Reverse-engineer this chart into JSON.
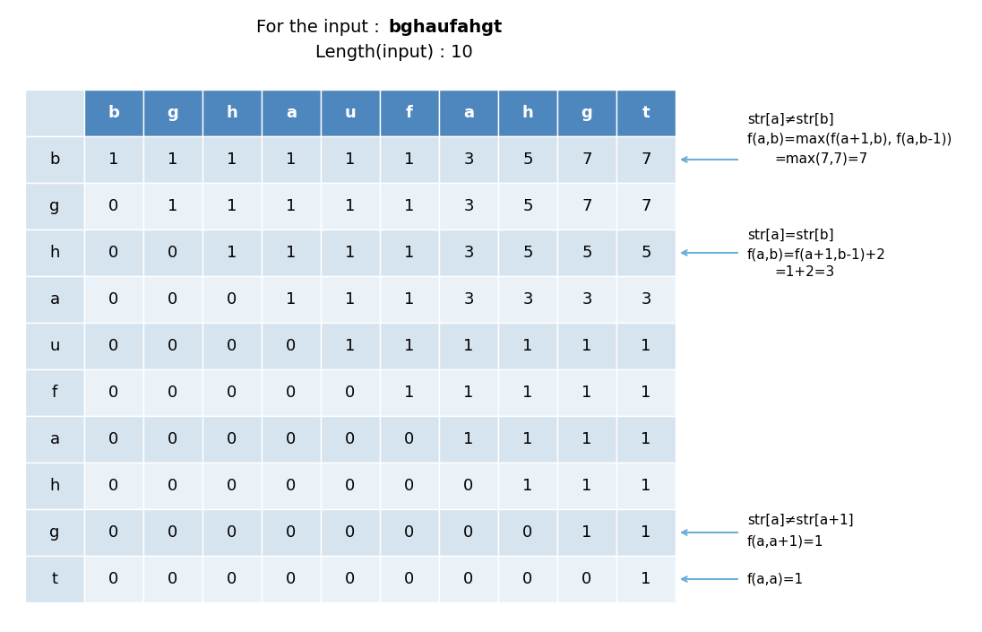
{
  "title_prefix": "For the input : ",
  "title_bold": "bghaufahgt",
  "subtitle": "Length(input) : 10",
  "col_headers": [
    "",
    "b",
    "g",
    "h",
    "a",
    "u",
    "f",
    "a",
    "h",
    "g",
    "t"
  ],
  "row_headers": [
    "b",
    "g",
    "h",
    "a",
    "u",
    "f",
    "a",
    "h",
    "g",
    "t"
  ],
  "table_data": [
    [
      1,
      1,
      1,
      1,
      1,
      1,
      3,
      5,
      7,
      7
    ],
    [
      0,
      1,
      1,
      1,
      1,
      1,
      3,
      5,
      7,
      7
    ],
    [
      0,
      0,
      1,
      1,
      1,
      1,
      3,
      5,
      5,
      5
    ],
    [
      0,
      0,
      0,
      1,
      1,
      1,
      3,
      3,
      3,
      3
    ],
    [
      0,
      0,
      0,
      0,
      1,
      1,
      1,
      1,
      1,
      1
    ],
    [
      0,
      0,
      0,
      0,
      0,
      1,
      1,
      1,
      1,
      1
    ],
    [
      0,
      0,
      0,
      0,
      0,
      0,
      1,
      1,
      1,
      1
    ],
    [
      0,
      0,
      0,
      0,
      0,
      0,
      0,
      1,
      1,
      1
    ],
    [
      0,
      0,
      0,
      0,
      0,
      0,
      0,
      0,
      1,
      1
    ],
    [
      0,
      0,
      0,
      0,
      0,
      0,
      0,
      0,
      0,
      1
    ]
  ],
  "header_bg": "#4e87be",
  "row_bg_light": "#d6e4f0",
  "row_bg_white": "#eaf2f8",
  "header_text_color": "#ffffff",
  "cell_text_color": "#000000",
  "annotation1_lines": [
    "str[a]≠str[b]",
    "f(a,b)=max(f(a+1,b), f(a,b-1))",
    "=max(7,7)=7"
  ],
  "annotation2_lines": [
    "str[a]=str[b]",
    "f(a,b)=f(a+1,b-1)+2",
    "=1+2=3"
  ],
  "annotation3_lines": [
    "str[a]≠str[a+1]",
    "f(a,a+1)=1"
  ],
  "annotation4_lines": [
    "f(a,a)=1"
  ],
  "arrow_color": "#6baed6",
  "figsize": [
    10.96,
    7.05
  ],
  "dpi": 100
}
